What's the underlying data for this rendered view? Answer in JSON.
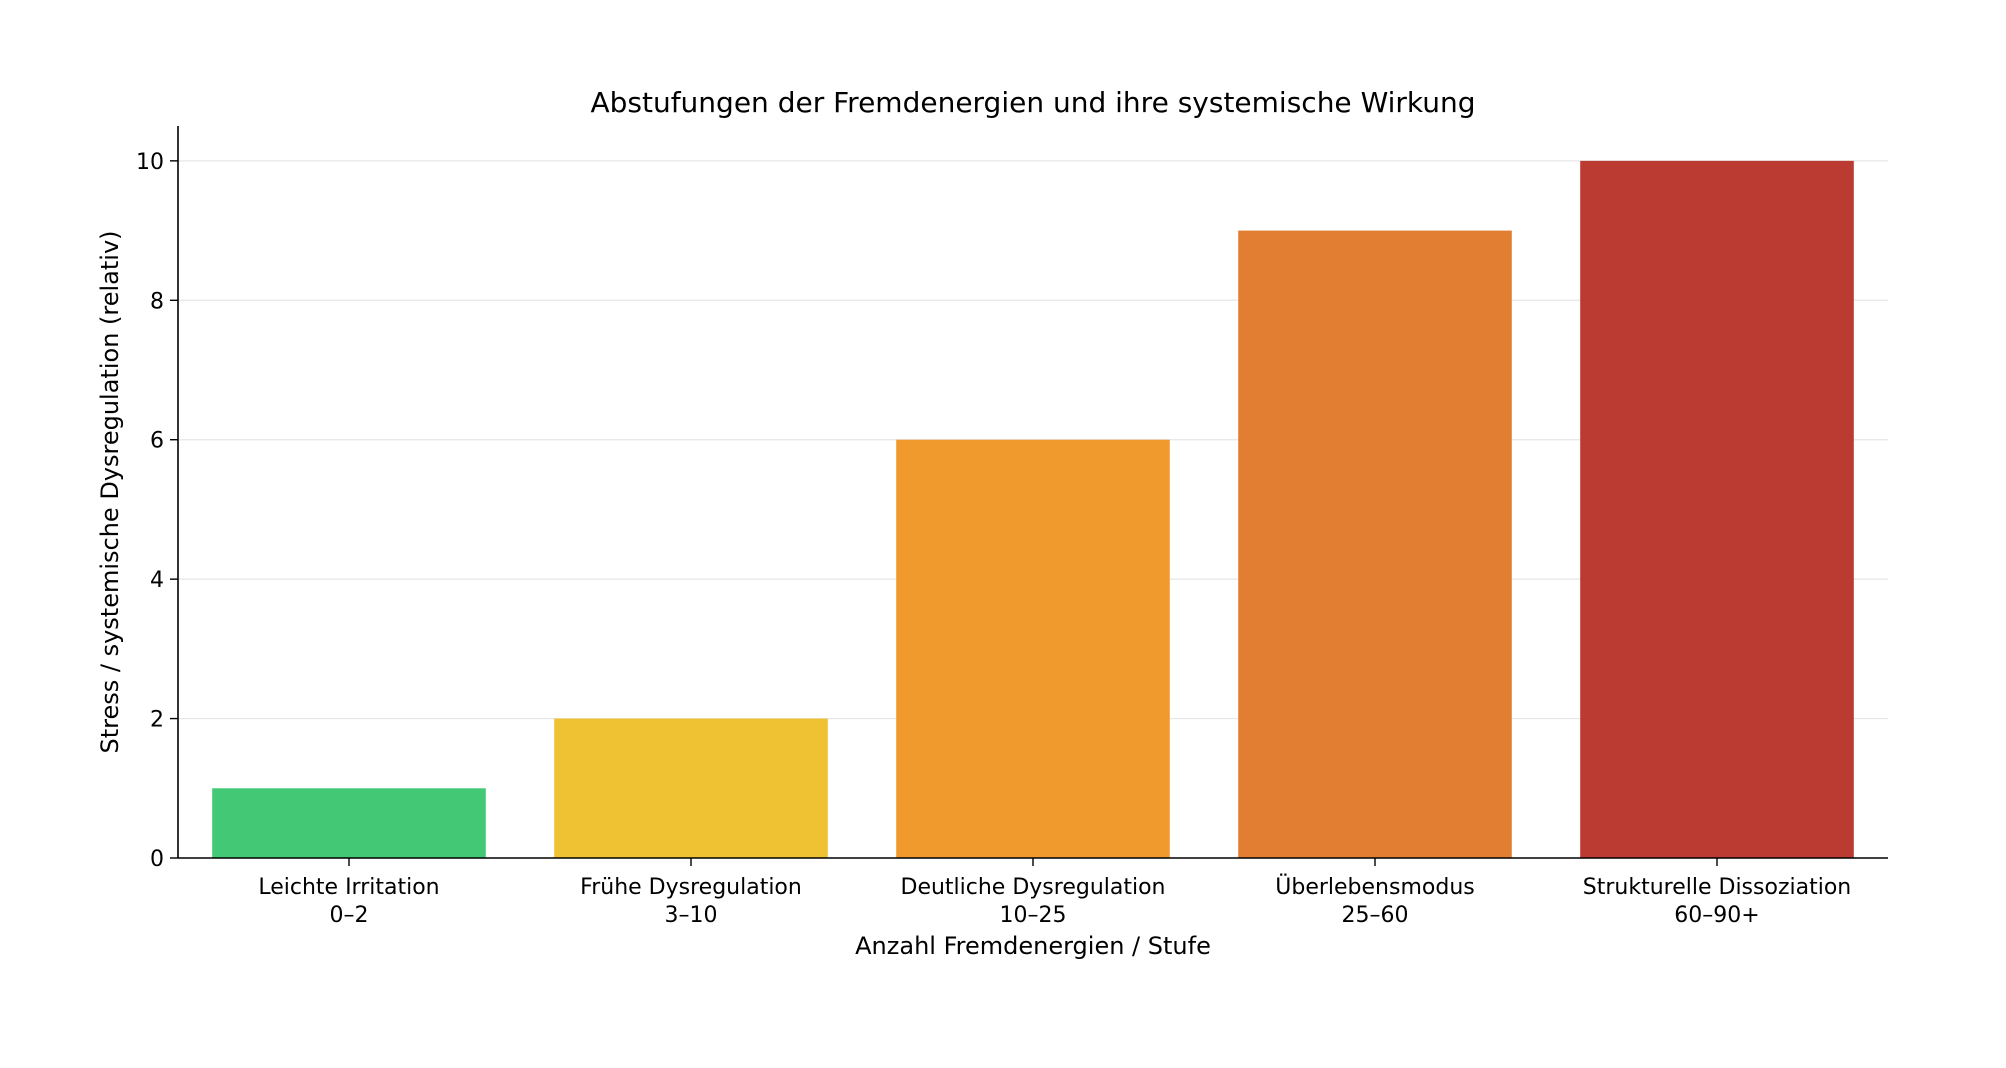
{
  "chart_data": {
    "type": "bar",
    "title": "Abstufungen der Fremdenergien und ihre systemische Wirkung",
    "xlabel": "Anzahl Fremdenergien / Stufe",
    "ylabel": "Stress / systemische Dysregulation (relativ)",
    "categories": [
      [
        "Leichte Irritation",
        "0–2"
      ],
      [
        "Frühe Dysregulation",
        "3–10"
      ],
      [
        "Deutliche Dysregulation",
        "10–25"
      ],
      [
        "Überlebensmodus",
        "25–60"
      ],
      [
        "Strukturelle Dissoziation",
        "60–90+"
      ]
    ],
    "values": [
      1,
      2,
      6,
      9,
      10
    ],
    "colors": [
      "#43c975",
      "#efc234",
      "#f09a2e",
      "#e27e31",
      "#bb3a31"
    ],
    "ylim": [
      0,
      10.5
    ],
    "yticks": [
      "0",
      "2",
      "4",
      "6",
      "8",
      "10"
    ],
    "grid": "y",
    "legend": "none"
  }
}
